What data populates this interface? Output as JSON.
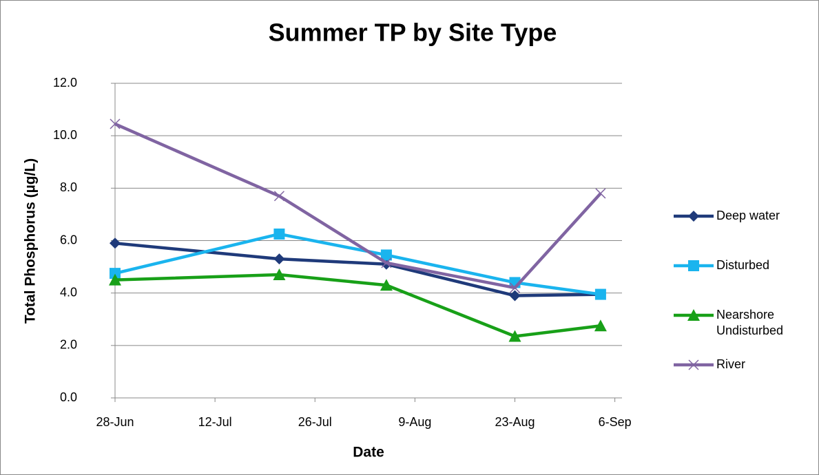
{
  "chart_data": {
    "type": "line",
    "title": "Summer TP by Site Type",
    "x_label": "Date",
    "y_label": "Total Phosphorus (µg/L)",
    "x": [
      "28-Jun",
      "21-Jul",
      "5-Aug",
      "23-Aug",
      "4-Sep"
    ],
    "xlim": [
      "28-Jun",
      "7-Sep"
    ],
    "xticks": [
      "28-Jun",
      "12-Jul",
      "26-Jul",
      "9-Aug",
      "23-Aug",
      "6-Sep"
    ],
    "ylim": [
      0,
      12
    ],
    "yticks": [
      {
        "value": 0,
        "label": "0.0"
      },
      {
        "value": 2,
        "label": "2.0"
      },
      {
        "value": 4,
        "label": "4.0"
      },
      {
        "value": 6,
        "label": "6.0"
      },
      {
        "value": 8,
        "label": "8.0"
      },
      {
        "value": 10,
        "label": "10.0"
      },
      {
        "value": 12,
        "label": "12.0"
      }
    ],
    "grid": true,
    "legend": "right",
    "series": [
      {
        "name": "Deep water",
        "color": "#1f3a7a",
        "marker": "diamond",
        "values": [
          5.9,
          5.3,
          5.1,
          3.9,
          3.95
        ]
      },
      {
        "name": "Disturbed",
        "color": "#1ab4ee",
        "marker": "square",
        "values": [
          4.75,
          6.25,
          5.45,
          4.4,
          3.95
        ]
      },
      {
        "name": "Nearshore Undisturbed",
        "color": "#18a018",
        "marker": "triangle",
        "values": [
          4.5,
          4.7,
          4.3,
          2.35,
          2.75
        ]
      },
      {
        "name": "River",
        "color": "#8064a2",
        "marker": "x",
        "values": [
          10.45,
          7.7,
          5.15,
          4.2,
          7.8
        ]
      }
    ]
  }
}
